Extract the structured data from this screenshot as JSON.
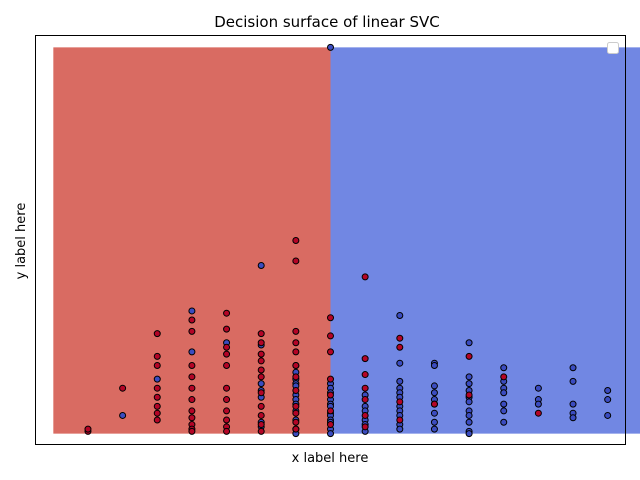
{
  "chart_data": {
    "type": "scatter",
    "title": "Decision surface of linear SVC",
    "xlabel": "x label here",
    "ylabel": "y label here",
    "xlim": [
      -0.5,
      16.5
    ],
    "ylim": [
      -0.5,
      17.5
    ],
    "x_ticks_shown": false,
    "y_ticks_shown": false,
    "grid": false,
    "legend": {
      "placement": "top-right",
      "entries": []
    },
    "colors": {
      "region_left": "#d96b62",
      "region_right": "#7187e3",
      "class_red": "#b40426",
      "class_blue": "#3b4cc0",
      "marker_edge": "#000000"
    },
    "decision_regions": [
      {
        "class": "red",
        "x_range": [
          0,
          8
        ],
        "y_range": [
          0,
          17
        ]
      },
      {
        "class": "blue",
        "x_range": [
          8,
          17
        ],
        "y_range": [
          0,
          17
        ]
      }
    ],
    "series": [
      {
        "class": "red",
        "points": [
          [
            1,
            0.1
          ],
          [
            1,
            0.2
          ],
          [
            2,
            2
          ],
          [
            3,
            4.4
          ],
          [
            3,
            3.4
          ],
          [
            3,
            3
          ],
          [
            3,
            2
          ],
          [
            3,
            1.6
          ],
          [
            3,
            1.2
          ],
          [
            3,
            0.9
          ],
          [
            3,
            0.6
          ],
          [
            4,
            5
          ],
          [
            4,
            4.5
          ],
          [
            4,
            3
          ],
          [
            4,
            2.5
          ],
          [
            4,
            2
          ],
          [
            4,
            1.5
          ],
          [
            4,
            1
          ],
          [
            4,
            0.7
          ],
          [
            4,
            0.4
          ],
          [
            4,
            0.2
          ],
          [
            4,
            0.1
          ],
          [
            5,
            5.3
          ],
          [
            5,
            4.6
          ],
          [
            5,
            3.8
          ],
          [
            5,
            3.5
          ],
          [
            5,
            3
          ],
          [
            5,
            2
          ],
          [
            5,
            1.5
          ],
          [
            5,
            1
          ],
          [
            5,
            0.6
          ],
          [
            5,
            0.3
          ],
          [
            5,
            0.1
          ],
          [
            6,
            4.4
          ],
          [
            6,
            4
          ],
          [
            6,
            3.5
          ],
          [
            6,
            3.2
          ],
          [
            6,
            2.8
          ],
          [
            6,
            2.5
          ],
          [
            6,
            1.8
          ],
          [
            6,
            1.2
          ],
          [
            6,
            0.8
          ],
          [
            6,
            0.4
          ],
          [
            6,
            0.1
          ],
          [
            7,
            8.5
          ],
          [
            7,
            7.6
          ],
          [
            7,
            4.5
          ],
          [
            7,
            4
          ],
          [
            7,
            3.6
          ],
          [
            7,
            3
          ],
          [
            7,
            2.5
          ],
          [
            7,
            1.9
          ],
          [
            7,
            1.2
          ],
          [
            7,
            0.9
          ],
          [
            7,
            0.5
          ],
          [
            7,
            0.2
          ],
          [
            8,
            5.1
          ],
          [
            8,
            4.3
          ],
          [
            8,
            3.6
          ],
          [
            8,
            2.4
          ],
          [
            8,
            1.7
          ],
          [
            8,
            1
          ],
          [
            8,
            0.4
          ],
          [
            9,
            6.9
          ],
          [
            9,
            3.3
          ],
          [
            9,
            2.6
          ],
          [
            9,
            2
          ],
          [
            9,
            1.5
          ],
          [
            9,
            0.8
          ],
          [
            9,
            0.3
          ],
          [
            10,
            4.2
          ],
          [
            10,
            3.8
          ],
          [
            10,
            1.4
          ],
          [
            10,
            0.6
          ],
          [
            11,
            1.3
          ],
          [
            12,
            3.4
          ],
          [
            12,
            1.7
          ],
          [
            13,
            2.5
          ],
          [
            14,
            0.9
          ]
        ]
      },
      {
        "class": "blue",
        "points": [
          [
            2,
            0.8
          ],
          [
            3,
            2.4
          ],
          [
            4,
            5.4
          ],
          [
            4,
            3.6
          ],
          [
            5,
            4
          ],
          [
            6,
            7.4
          ],
          [
            6,
            3.9
          ],
          [
            6,
            2.2
          ],
          [
            6,
            1.9
          ],
          [
            6,
            1.6
          ],
          [
            6,
            0.5
          ],
          [
            6,
            0.3
          ],
          [
            7,
            3
          ],
          [
            7,
            2.7
          ],
          [
            7,
            2.4
          ],
          [
            7,
            2.2
          ],
          [
            7,
            2.1
          ],
          [
            7,
            1.7
          ],
          [
            7,
            1.5
          ],
          [
            7,
            1.3
          ],
          [
            7,
            1
          ],
          [
            7,
            0.6
          ],
          [
            7,
            0.2
          ],
          [
            7,
            0
          ],
          [
            8,
            17
          ],
          [
            8,
            2.2
          ],
          [
            8,
            2
          ],
          [
            8,
            1.8
          ],
          [
            8,
            1.5
          ],
          [
            8,
            1.3
          ],
          [
            8,
            1.2
          ],
          [
            8,
            0.9
          ],
          [
            8,
            0.8
          ],
          [
            8,
            0.6
          ],
          [
            8,
            0.5
          ],
          [
            8,
            0.2
          ],
          [
            8,
            0
          ],
          [
            9,
            1.7
          ],
          [
            9,
            1.2
          ],
          [
            9,
            1
          ],
          [
            9,
            0.6
          ],
          [
            9,
            0.4
          ],
          [
            9,
            0.1
          ],
          [
            10,
            5.2
          ],
          [
            10,
            3.1
          ],
          [
            10,
            2.3
          ],
          [
            10,
            2
          ],
          [
            10,
            1.8
          ],
          [
            10,
            1.6
          ],
          [
            10,
            1.2
          ],
          [
            10,
            1
          ],
          [
            10,
            0.8
          ],
          [
            10,
            0.4
          ],
          [
            10,
            0.2
          ],
          [
            11,
            3.1
          ],
          [
            11,
            3
          ],
          [
            11,
            2.1
          ],
          [
            11,
            1.8
          ],
          [
            11,
            1.5
          ],
          [
            11,
            1.3
          ],
          [
            11,
            0.9
          ],
          [
            11,
            0.5
          ],
          [
            11,
            0.2
          ],
          [
            12,
            4
          ],
          [
            12,
            2.5
          ],
          [
            12,
            2.2
          ],
          [
            12,
            1.9
          ],
          [
            12,
            1.6
          ],
          [
            12,
            1.4
          ],
          [
            12,
            1
          ],
          [
            12,
            0.8
          ],
          [
            12,
            0.5
          ],
          [
            12,
            0.1
          ],
          [
            12,
            0
          ],
          [
            13,
            2.9
          ],
          [
            13,
            2.3
          ],
          [
            13,
            2
          ],
          [
            13,
            1.8
          ],
          [
            13,
            1.3
          ],
          [
            13,
            1
          ],
          [
            13,
            0.5
          ],
          [
            14,
            2
          ],
          [
            14,
            1.5
          ],
          [
            14,
            1.3
          ],
          [
            15,
            2.9
          ],
          [
            15,
            2.3
          ],
          [
            15,
            1.3
          ],
          [
            15,
            0.9
          ],
          [
            15,
            0.7
          ],
          [
            16,
            1.9
          ],
          [
            16,
            1.5
          ],
          [
            16,
            0.8
          ]
        ]
      }
    ]
  }
}
